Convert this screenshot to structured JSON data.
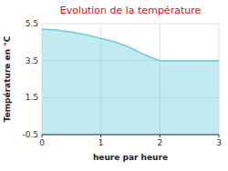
{
  "chart_data": {
    "type": "area",
    "title": "Evolution de la température",
    "xlabel": "heure par heure",
    "ylabel": "Température en °C",
    "x": [
      0,
      0.25,
      0.5,
      0.75,
      1.0,
      1.25,
      1.5,
      1.75,
      2.0,
      2.5,
      3.0
    ],
    "values": [
      5.2,
      5.15,
      5.05,
      4.9,
      4.7,
      4.5,
      4.2,
      3.8,
      3.5,
      3.5,
      3.5
    ],
    "color": "#66ccdd",
    "xlim": [
      0,
      3
    ],
    "ylim": [
      -0.5,
      5.5
    ],
    "xticks": [
      0,
      1,
      2,
      3
    ],
    "yticks": [
      -0.5,
      1.5,
      3.5,
      5.5
    ],
    "grid": true
  }
}
